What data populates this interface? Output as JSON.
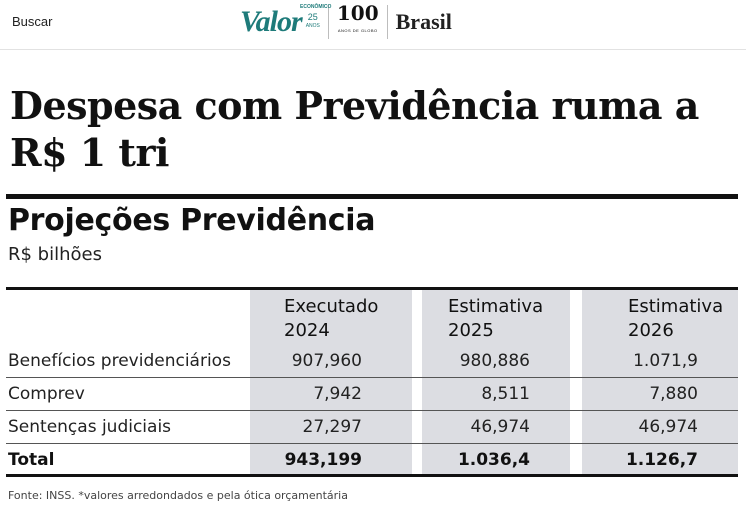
{
  "header": {
    "search_label": "Buscar",
    "logo_name": "Valor",
    "logo_tag": "ECONÔMICO",
    "logo_anniversary": "25",
    "logo_anniversary_sub": "ANOS",
    "partner_logo": "100",
    "partner_logo_sub": "ANOS DE GLOBO",
    "section": "Brasil",
    "brand_color": "#1e7b7a"
  },
  "article": {
    "headline": "Despesa com Previdência ruma a R$ 1 tri"
  },
  "graphic": {
    "title": "Projeções Previdência",
    "unit": "R$ bilhões",
    "columns": [
      {
        "line1": "Executado",
        "line2": "2024"
      },
      {
        "line1": "Estimativa",
        "line2": "2025"
      },
      {
        "line1": "Estimativa",
        "line2": "2026"
      }
    ],
    "rows": [
      {
        "label": "Benefícios previdenciários",
        "values": [
          "907,960",
          "980,886",
          "1.071,9"
        ]
      },
      {
        "label": "Comprev",
        "values": [
          "7,942",
          "8,511",
          "7,880"
        ]
      },
      {
        "label": "Sentenças judiciais",
        "values": [
          "27,297",
          "46,974",
          "46,974"
        ]
      }
    ],
    "total": {
      "label": "Total",
      "values": [
        "943,199",
        "1.036,4",
        "1.126,7"
      ]
    },
    "source": "Fonte: INSS. *valores arredondados e pela ótica orçamentária"
  }
}
